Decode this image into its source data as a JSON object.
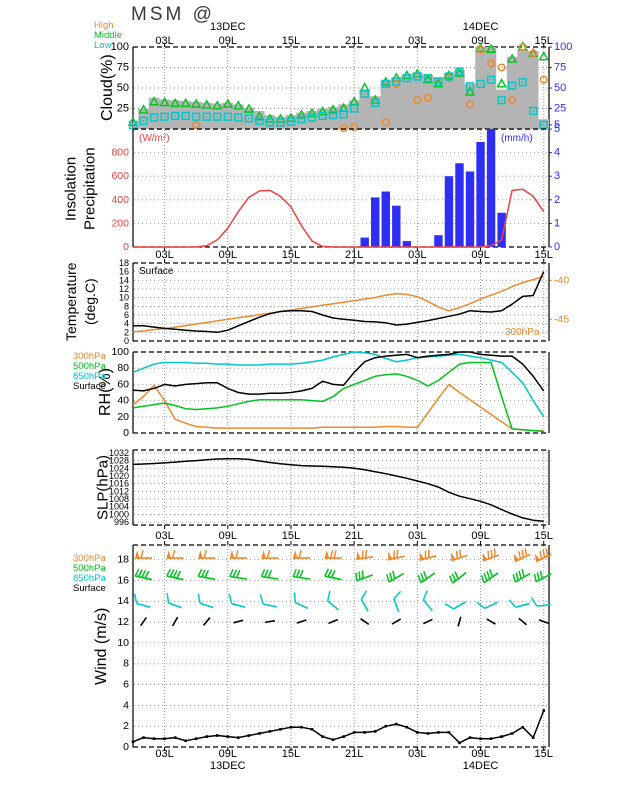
{
  "title": "MSM  @",
  "colors": {
    "high_orange": "#f0882c",
    "middle_green": "#00c41e",
    "low_cyan": "#00c8c8",
    "axis_blue": "#2e2ef5",
    "insolation_red": "#f04040",
    "cloud_gray": "#b4b4b4",
    "black": "#000000",
    "grid": "#9a9a9a"
  },
  "time_axis": {
    "hours_span": 39.5,
    "tick_hours": [
      3,
      9,
      15,
      21,
      27,
      33,
      39
    ],
    "tick_labels": [
      "03L",
      "09L",
      "15L",
      "21L",
      "03L",
      "09L",
      "15L"
    ],
    "dates": [
      {
        "label": "13DEC",
        "hour": 9
      },
      {
        "label": "14DEC",
        "hour": 33
      }
    ]
  },
  "chart_data": [
    {
      "id": "cloud",
      "type": "mixed",
      "ylabel": "Cloud(%)",
      "ylim": [
        0,
        100
      ],
      "yticks_left": [
        25,
        50,
        75,
        100
      ],
      "yticks_right": [
        5,
        25,
        50,
        75,
        100
      ],
      "right_map": {
        "rv": [
          0,
          100
        ],
        "lv": [
          0,
          100
        ]
      },
      "legend": [
        {
          "label": "High",
          "color": "#f0882c"
        },
        {
          "label": "Middle",
          "color": "#00c41e"
        },
        {
          "label": "Low",
          "color": "#00c8c8"
        }
      ],
      "series": [
        {
          "name": "Total",
          "style": "area",
          "color": "#b4b4b4",
          "values": [
            10,
            25,
            38,
            36,
            35,
            34,
            33,
            32,
            31,
            32,
            30,
            26,
            22,
            17,
            15,
            17,
            20,
            22,
            25,
            27,
            30,
            35,
            48,
            40,
            60,
            63,
            66,
            69,
            66,
            63,
            68,
            72,
            55,
            100,
            100,
            48,
            88,
            97,
            95,
            12
          ]
        },
        {
          "name": "Middle",
          "style": "markers",
          "marker": "triangle",
          "color": "#00c41e",
          "values": [
            8,
            23,
            33,
            32,
            31,
            31,
            30,
            29,
            28,
            30,
            28,
            24,
            15,
            12,
            12,
            13,
            17,
            19,
            21,
            23,
            25,
            33,
            50,
            35,
            57,
            62,
            65,
            67,
            60,
            55,
            65,
            68,
            45,
            98,
            97,
            55,
            85,
            100,
            92,
            88
          ]
        },
        {
          "name": "High",
          "style": "markers",
          "marker": "circle",
          "color": "#f0882c",
          "values": [
            null,
            null,
            null,
            null,
            null,
            null,
            5,
            null,
            null,
            null,
            null,
            null,
            null,
            null,
            null,
            null,
            null,
            null,
            null,
            null,
            1,
            2,
            null,
            null,
            8,
            55,
            null,
            35,
            38,
            null,
            62,
            null,
            30,
            97,
            80,
            75,
            35,
            100,
            92,
            60
          ]
        },
        {
          "name": "Low",
          "style": "markers",
          "marker": "square",
          "color": "#00c8c8",
          "values": [
            5,
            10,
            14,
            15,
            16,
            16,
            15,
            15,
            15,
            15,
            14,
            13,
            10,
            8,
            8,
            9,
            12,
            14,
            16,
            17,
            18,
            25,
            43,
            32,
            55,
            58,
            62,
            64,
            62,
            58,
            64,
            70,
            52,
            55,
            60,
            35,
            53,
            57,
            22,
            5
          ]
        }
      ]
    },
    {
      "id": "insolation_precip",
      "type": "mixed",
      "ylabel_1": "Insolation",
      "ylabel_2": "Precipitation",
      "left_unit": "(W/m²)",
      "right_unit": "(mm/h)",
      "ylim": [
        0,
        1000
      ],
      "yticks_left": [
        0,
        200,
        400,
        600,
        800
      ],
      "yticks_right": [
        0,
        1,
        2,
        3,
        4,
        5
      ],
      "right_map": {
        "rv": [
          0,
          5
        ],
        "lv": [
          0,
          1000
        ]
      },
      "series": [
        {
          "name": "Precipitation",
          "style": "bars",
          "axis": "right",
          "color": "#2e2ef5",
          "values": [
            0,
            0,
            0,
            0,
            0,
            0,
            0,
            0,
            0,
            0,
            0,
            0,
            0,
            0,
            0,
            0,
            0,
            0,
            0,
            0,
            0,
            0,
            0.4,
            2.1,
            2.35,
            1.75,
            0.25,
            0,
            0,
            0.5,
            3,
            3.55,
            3.2,
            4.45,
            5,
            1.45,
            0,
            0,
            0,
            0
          ]
        },
        {
          "name": "Insolation",
          "style": "line",
          "axis": "left",
          "color": "#f04040",
          "values": [
            0,
            0,
            0,
            0,
            0,
            0,
            0,
            10,
            60,
            160,
            300,
            420,
            475,
            480,
            430,
            340,
            180,
            50,
            5,
            0,
            0,
            0,
            0,
            0,
            0,
            0,
            0,
            0,
            0,
            0,
            0,
            0,
            0,
            0,
            10,
            60,
            480,
            490,
            430,
            300
          ]
        }
      ]
    },
    {
      "id": "temperature",
      "type": "line",
      "ylabel_1": "Temperature",
      "ylabel_2": "(deg.C)",
      "annot_left": "Surface",
      "annot_right": "300hPa",
      "ylim": [
        0,
        18
      ],
      "yticks_left": [
        0,
        2,
        4,
        6,
        8,
        10,
        12,
        14,
        16,
        18
      ],
      "yticks_right": [
        -40,
        -45
      ],
      "right_map": {
        "rv": [
          -40,
          -45
        ],
        "lv": [
          14,
          5
        ]
      },
      "series": [
        {
          "name": "Surface",
          "style": "line",
          "axis": "left",
          "color": "#000000",
          "values": [
            3.5,
            3.5,
            3.2,
            2.9,
            2.7,
            2.5,
            2.3,
            2.2,
            2.0,
            2.5,
            3.5,
            4.5,
            5.5,
            6.3,
            6.8,
            7.0,
            7.0,
            6.8,
            6.0,
            5.3,
            5.0,
            4.8,
            4.5,
            4.4,
            4.2,
            3.7,
            3.9,
            4.3,
            4.7,
            5.2,
            5.7,
            6.2,
            7.0,
            6.8,
            6.7,
            7.0,
            8.5,
            10.3,
            10.5,
            16.0
          ]
        },
        {
          "name": "300hPa",
          "style": "line",
          "axis": "right",
          "color": "#f0882c",
          "values": [
            -46.6,
            -46.5,
            -46.3,
            -46.2,
            -46.0,
            -45.8,
            -45.6,
            -45.4,
            -45.2,
            -45.0,
            -44.8,
            -44.6,
            -44.4,
            -44.2,
            -44.0,
            -43.8,
            -43.6,
            -43.4,
            -43.2,
            -43.0,
            -42.8,
            -42.6,
            -42.4,
            -42.2,
            -41.9,
            -41.7,
            -41.8,
            -42.1,
            -42.7,
            -43.4,
            -43.9,
            -43.5,
            -43.0,
            -42.4,
            -41.9,
            -41.4,
            -40.8,
            -40.3,
            -39.9,
            -39.5
          ]
        }
      ]
    },
    {
      "id": "rh",
      "type": "line",
      "ylabel": "RH(%)",
      "ylim": [
        0,
        100
      ],
      "yticks_left": [
        0,
        20,
        40,
        60,
        80,
        100
      ],
      "legend": [
        {
          "label": "300hPa",
          "color": "#f0882c"
        },
        {
          "label": "500hPa",
          "color": "#00c41e"
        },
        {
          "label": "850hPa",
          "color": "#00c8c8"
        },
        {
          "label": "Surface",
          "color": "#000000"
        }
      ],
      "series": [
        {
          "name": "300hPa",
          "style": "line",
          "color": "#f0882c",
          "values": [
            35,
            45,
            59,
            40,
            17,
            12,
            8,
            7,
            6,
            6,
            6,
            6,
            6,
            6,
            6,
            6,
            6,
            6,
            7,
            7,
            7,
            7,
            7,
            7,
            8,
            8,
            7,
            7,
            25,
            43,
            60,
            50,
            41,
            32,
            23,
            14,
            5,
            4,
            3,
            3
          ]
        },
        {
          "name": "500hPa",
          "style": "line",
          "color": "#00c41e",
          "values": [
            31,
            33,
            35,
            37,
            34,
            30,
            29,
            30,
            31,
            33,
            36,
            39,
            41,
            41,
            41,
            41,
            41,
            40,
            39,
            45,
            55,
            60,
            65,
            70,
            72,
            73,
            70,
            65,
            58,
            65,
            75,
            85,
            87,
            87,
            87,
            45,
            5,
            4,
            3,
            2
          ]
        },
        {
          "name": "850hPa",
          "style": "line",
          "color": "#00c8c8",
          "values": [
            75,
            80,
            85,
            87,
            87,
            87,
            86,
            86,
            85,
            85,
            84,
            84,
            84,
            85,
            85,
            85,
            86,
            88,
            90,
            94,
            97,
            100,
            99,
            97,
            92,
            88,
            90,
            93,
            94,
            95,
            96,
            97,
            95,
            93,
            90,
            87,
            75,
            62,
            40,
            20
          ]
        },
        {
          "name": "Surface",
          "style": "line",
          "color": "#000000",
          "values": [
            53,
            52,
            55,
            60,
            58,
            60,
            61,
            62,
            62,
            55,
            50,
            48,
            48,
            49,
            49,
            50,
            52,
            55,
            64,
            60,
            59,
            75,
            88,
            93,
            95,
            96,
            97,
            93,
            95,
            96,
            97,
            100,
            100,
            97,
            96,
            95,
            95,
            85,
            70,
            52
          ]
        }
      ]
    },
    {
      "id": "slp",
      "type": "line",
      "ylabel": "SLP(hPa)",
      "ylim": [
        994.5,
        1033.5
      ],
      "yticks_left": [
        996,
        1000,
        1004,
        1008,
        1012,
        1016,
        1020,
        1024,
        1028,
        1032
      ],
      "series": [
        {
          "name": "SLP",
          "style": "line",
          "color": "#000000",
          "values": [
            1026,
            1026.2,
            1026.5,
            1026.8,
            1027.2,
            1027.6,
            1028,
            1028.4,
            1028.8,
            1029,
            1029,
            1028.6,
            1027.8,
            1027,
            1026.3,
            1025.8,
            1025.4,
            1025.2,
            1025,
            1024.8,
            1024.5,
            1024,
            1023.2,
            1022.2,
            1021.2,
            1020,
            1018.8,
            1017.4,
            1016,
            1014.2,
            1011.5,
            1009.5,
            1008.2,
            1006.8,
            1005,
            1002.5,
            1000.2,
            998.2,
            997,
            996.5
          ]
        }
      ]
    },
    {
      "id": "wind",
      "type": "mixed",
      "ylabel": "Wind (m/s)",
      "ylim": [
        0,
        19.4
      ],
      "yticks_left": [
        0,
        2,
        4,
        6,
        8,
        10,
        12,
        14,
        16,
        18
      ],
      "legend": [
        {
          "label": "300hPa",
          "color": "#f0882c"
        },
        {
          "label": "500hPa",
          "color": "#00c41e"
        },
        {
          "label": "850hPa",
          "color": "#00c8c8"
        },
        {
          "label": "Surface",
          "color": "#000000"
        }
      ],
      "barb_hours": [
        1,
        4,
        7,
        10,
        13,
        16,
        19,
        22,
        25,
        28,
        31,
        34,
        37,
        39
      ],
      "series": [
        {
          "name": "300hPa-barbs",
          "style": "barbs",
          "color": "#f0882c",
          "row": 18.15,
          "len": 17,
          "tick": 8,
          "tick_angle": 75,
          "flags": 1,
          "angles": [
            0,
            0,
            0,
            0,
            0,
            0,
            0,
            8,
            12,
            15,
            18,
            20,
            25,
            25
          ],
          "fulls": [
            1,
            1,
            1,
            1,
            1,
            1,
            2,
            2,
            2,
            2,
            2,
            3,
            3,
            3
          ]
        },
        {
          "name": "500hPa-barbs",
          "style": "barbs",
          "color": "#00c41e",
          "row": 16.25,
          "len": 17,
          "tick": 8,
          "tick_angle": 75,
          "flags": 0,
          "angles": [
            -12,
            -12,
            -10,
            -8,
            -8,
            -8,
            -12,
            20,
            30,
            35,
            38,
            35,
            30,
            28
          ],
          "fulls": [
            4,
            4,
            3,
            3,
            3,
            3,
            3,
            3,
            3,
            3,
            3,
            4,
            4,
            3
          ]
        },
        {
          "name": "850hPa-barbs",
          "style": "barbs",
          "color": "#00c8c8",
          "row": 13.6,
          "len": 14,
          "tick": 10,
          "tick_angle": 118,
          "flags": 0,
          "angles": [
            -15,
            -20,
            -18,
            -15,
            -12,
            -25,
            -40,
            -60,
            -70,
            -50,
            30,
            25,
            15,
            5
          ],
          "fulls": [
            1,
            1,
            1,
            1,
            1,
            1,
            1,
            1,
            1,
            1,
            1,
            1,
            1,
            1
          ]
        },
        {
          "name": "Surface-barbs",
          "style": "barbs",
          "color": "#000000",
          "row": 12.05,
          "len": 10,
          "tick": 0,
          "tick_angle": 75,
          "flags": 0,
          "angles": [
            55,
            60,
            50,
            15,
            10,
            18,
            22,
            -35,
            30,
            25,
            75,
            -30,
            -40,
            -20
          ],
          "fulls": [
            0,
            0,
            0,
            0,
            0,
            0,
            0,
            0,
            0,
            0,
            0,
            0,
            0,
            0
          ]
        },
        {
          "name": "Surface-speed",
          "style": "line",
          "color": "#000000",
          "markers": true,
          "values": [
            0.5,
            0.9,
            0.8,
            0.8,
            0.9,
            0.6,
            0.8,
            1.0,
            1.1,
            1.0,
            0.9,
            1.1,
            1.3,
            1.5,
            1.7,
            1.9,
            1.9,
            1.7,
            1.0,
            0.7,
            1.0,
            1.4,
            1.4,
            1.5,
            2.0,
            2.2,
            1.9,
            1.4,
            1.3,
            1.4,
            1.4,
            0.4,
            0.9,
            0.8,
            0.8,
            1.0,
            1.3,
            1.9,
            0.9,
            3.5
          ]
        }
      ]
    }
  ]
}
